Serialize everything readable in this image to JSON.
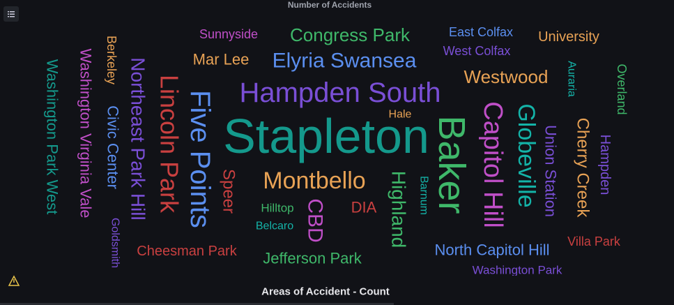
{
  "header": {
    "title": "Number of Accidents"
  },
  "words": [
    "Sunnyside",
    "Congress Park",
    "East Colfax",
    "University",
    "Mar Lee",
    "Elyria Swansea",
    "West Colfax",
    "Westwood",
    "Hampden South",
    "Hale",
    "Stapleton",
    "Montbello",
    "Hilltop",
    "DIA",
    "Belcaro",
    "Cheesman Park",
    "Jefferson Park",
    "North Capitol Hill",
    "Villa Park",
    "Washington Park",
    "Washington Park West",
    "Washington Virginia Vale",
    "Berkeley",
    "Civic Center",
    "Goldsmith",
    "Northeast Park Hill",
    "Lincoln Park",
    "Five Points",
    "Speer",
    "CBD",
    "Highland",
    "Barnum",
    "Baker",
    "Capitol Hill",
    "Globeville",
    "Union Station",
    "Auraria",
    "Cherry Creek",
    "Hampden",
    "Overland"
  ],
  "footer": {
    "label": "Areas of Accident - Count"
  }
}
